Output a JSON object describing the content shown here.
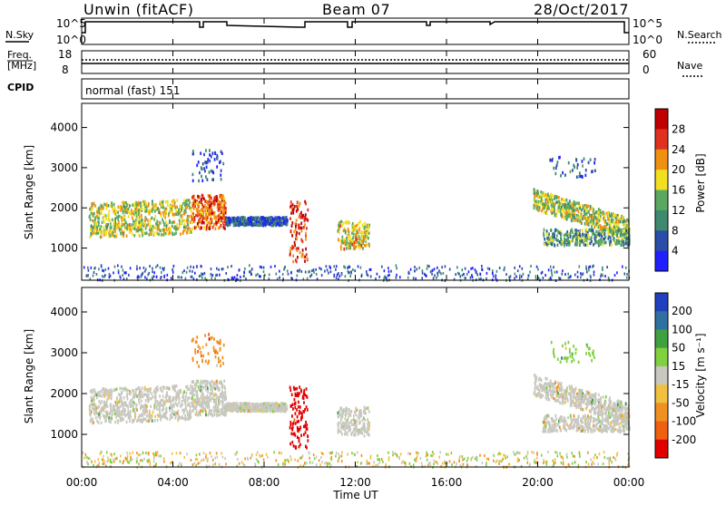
{
  "header": {
    "title_left": "Unwin (fitACF)",
    "title_center": "Beam 07",
    "title_right": "28/Oct/2017"
  },
  "status_panels": {
    "nsky_label": "N.Sky",
    "nsky_ticks": [
      "10^5",
      "10^0"
    ],
    "nsearch_label": "N.Search",
    "nsearch_ticks": [
      "10^5",
      "10^0"
    ],
    "freq_label_line1": "Freq.",
    "freq_label_line2": "[MHz]",
    "freq_ticks": [
      "18",
      "8"
    ],
    "nave_label": "Nave",
    "nave_ticks": [
      "60",
      "0"
    ],
    "cpid_label": "CPID",
    "cpid_value": "normal (fast) 151"
  },
  "chart_data": [
    {
      "type": "heatmap",
      "name": "power",
      "ylabel": "Slant Range [km]",
      "yticks": [
        1000,
        2000,
        3000,
        4000
      ],
      "ylim": [
        200,
        4600
      ],
      "colorbar_label": "Power [dB]",
      "colorbar_ticks": [
        4,
        8,
        12,
        16,
        20,
        24,
        28
      ],
      "colorbar_colors": [
        "#2020ff",
        "#2a4da8",
        "#3f8a6f",
        "#5aa860",
        "#f0e020",
        "#f09010",
        "#e03020",
        "#c00000"
      ]
    },
    {
      "type": "heatmap",
      "name": "velocity",
      "ylabel": "Slant Range [km]",
      "yticks": [
        1000,
        2000,
        3000,
        4000
      ],
      "ylim": [
        200,
        4600
      ],
      "colorbar_label": "Velocity [m s⁻¹]",
      "colorbar_ticks": [
        200,
        100,
        50,
        15,
        -15,
        -50,
        -100,
        -200
      ],
      "colorbar_colors": [
        "#2040c0",
        "#3070a0",
        "#40a040",
        "#80d040",
        "#c8c8c0",
        "#f0c040",
        "#f09020",
        "#f06010",
        "#e00000"
      ]
    }
  ],
  "x_axis": {
    "ticks": [
      "00:00",
      "04:00",
      "08:00",
      "12:00",
      "16:00",
      "20:00",
      "00:00"
    ],
    "label": "Time UT"
  }
}
